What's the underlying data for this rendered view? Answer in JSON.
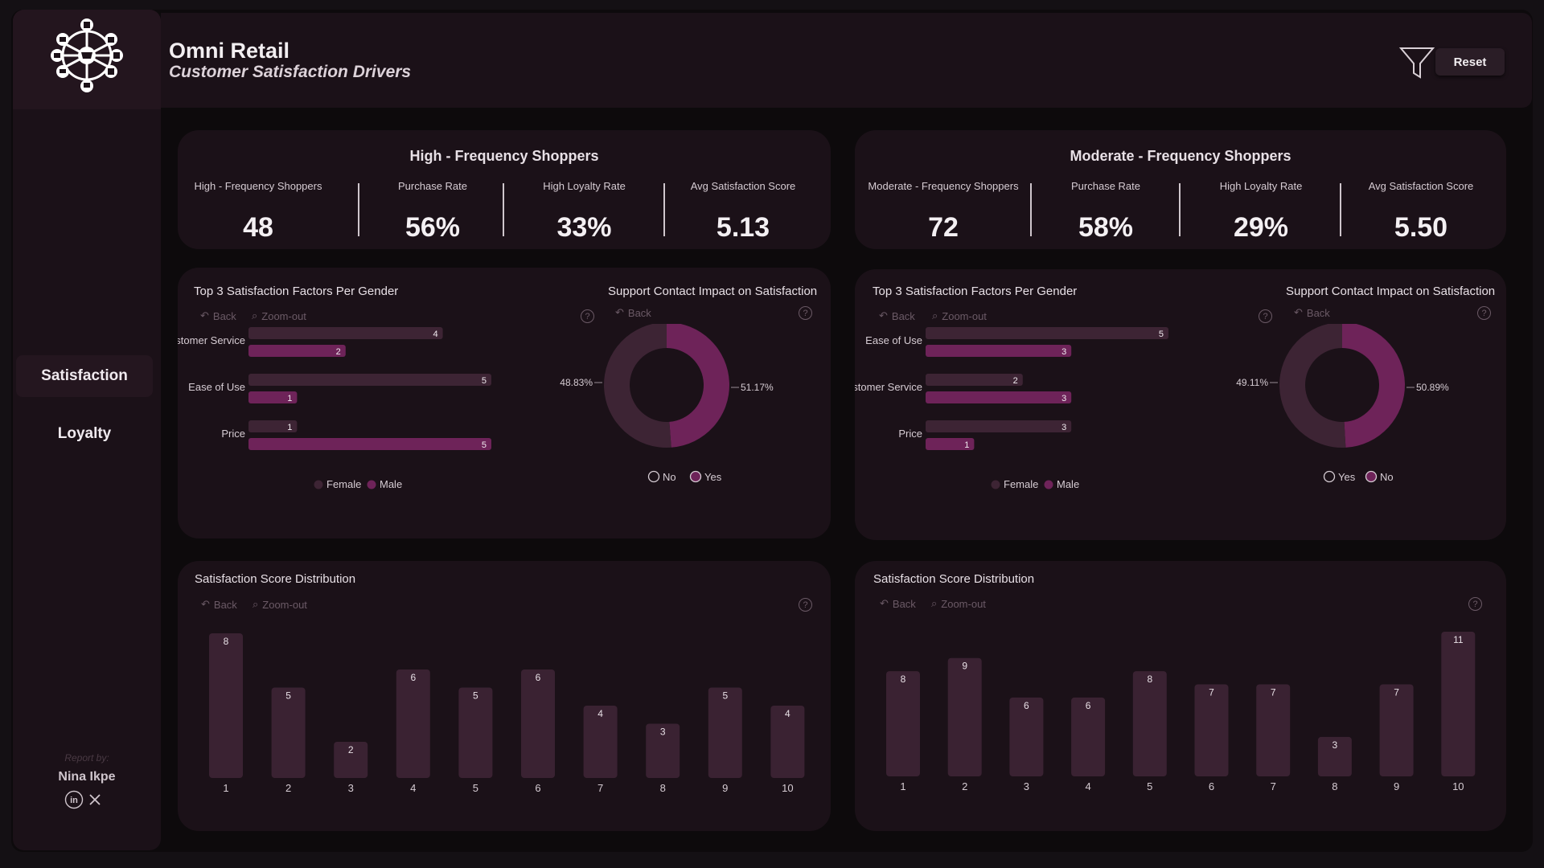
{
  "app": {
    "title": "Omni Retail",
    "subtitle": "Customer Satisfaction Drivers",
    "reset_label": "Reset"
  },
  "nav": {
    "items": [
      {
        "label": "Satisfaction",
        "active": true
      },
      {
        "label": "Loyalty",
        "active": false
      }
    ]
  },
  "credit": {
    "label": "Report by:",
    "name": "Nina Ikpe"
  },
  "controls": {
    "back": "Back",
    "zoom_out": "Zoom-out",
    "help": "?"
  },
  "colors": {
    "female": "#3d2434",
    "male": "#6e2359",
    "bar": "#3a2232"
  },
  "high": {
    "title": "High - Frequency Shoppers",
    "kpis": [
      {
        "label": "High - Frequency Shoppers",
        "value": "48"
      },
      {
        "label": "Purchase Rate",
        "value": "56%"
      },
      {
        "label": "High Loyalty Rate",
        "value": "33%"
      },
      {
        "label": "Avg Satisfaction Score",
        "value": "5.13"
      }
    ],
    "factors_title": "Top 3 Satisfaction Factors Per Gender",
    "support_title": "Support Contact Impact on Satisfaction",
    "distribution_title": "Satisfaction Score Distribution"
  },
  "moderate": {
    "title": "Moderate - Frequency Shoppers",
    "kpis": [
      {
        "label": "Moderate - Frequency Shoppers",
        "value": "72"
      },
      {
        "label": "Purchase Rate",
        "value": "58%"
      },
      {
        "label": "High Loyalty Rate",
        "value": "29%"
      },
      {
        "label": "Avg Satisfaction Score",
        "value": "5.50"
      }
    ],
    "factors_title": "Top 3 Satisfaction Factors Per Gender",
    "support_title": "Support Contact Impact on Satisfaction",
    "distribution_title": "Satisfaction Score Distribution"
  },
  "chart_data": [
    {
      "id": "high_factors",
      "type": "bar",
      "orientation": "horizontal",
      "title": "Top 3 Satisfaction Factors Per Gender",
      "categories": [
        "Customer Service",
        "Ease of Use",
        "Price"
      ],
      "series": [
        {
          "name": "Female",
          "values": [
            4,
            5,
            1
          ]
        },
        {
          "name": "Male",
          "values": [
            2,
            1,
            5
          ]
        }
      ],
      "xlim": [
        0,
        5
      ]
    },
    {
      "id": "high_support",
      "type": "pie",
      "title": "Support Contact Impact on Satisfaction",
      "labels": [
        "No",
        "Yes"
      ],
      "values": [
        48.83,
        51.17
      ],
      "value_labels": [
        "48.83%",
        "51.17%"
      ]
    },
    {
      "id": "high_distribution",
      "type": "bar",
      "title": "Satisfaction Score Distribution",
      "categories": [
        "1",
        "2",
        "3",
        "4",
        "5",
        "6",
        "7",
        "8",
        "9",
        "10"
      ],
      "values": [
        8,
        5,
        2,
        6,
        5,
        6,
        4,
        3,
        5,
        4
      ],
      "ylim": [
        0,
        8
      ]
    },
    {
      "id": "mod_factors",
      "type": "bar",
      "orientation": "horizontal",
      "title": "Top 3 Satisfaction Factors Per Gender",
      "categories": [
        "Ease of Use",
        "Customer Service",
        "Price"
      ],
      "series": [
        {
          "name": "Female",
          "values": [
            5,
            2,
            3
          ]
        },
        {
          "name": "Male",
          "values": [
            3,
            3,
            1
          ]
        }
      ],
      "xlim": [
        0,
        5
      ]
    },
    {
      "id": "mod_support",
      "type": "pie",
      "title": "Support Contact Impact on Satisfaction",
      "labels": [
        "Yes",
        "No"
      ],
      "values": [
        49.11,
        50.89
      ],
      "value_labels": [
        "49.11%",
        "50.89%"
      ]
    },
    {
      "id": "mod_distribution",
      "type": "bar",
      "title": "Satisfaction Score Distribution",
      "categories": [
        "1",
        "2",
        "3",
        "4",
        "5",
        "6",
        "7",
        "8",
        "9",
        "10"
      ],
      "values": [
        8,
        9,
        6,
        6,
        8,
        7,
        7,
        3,
        7,
        11
      ],
      "ylim": [
        0,
        11
      ]
    }
  ]
}
